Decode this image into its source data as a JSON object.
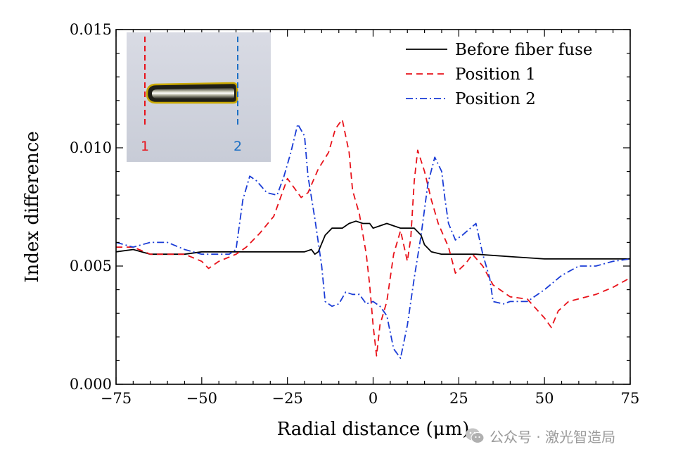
{
  "chart_data": {
    "type": "line",
    "xlabel": "Radial distance (μm)",
    "ylabel": "Index difference",
    "xlim": [
      -75,
      75
    ],
    "ylim": [
      0.0,
      0.015
    ],
    "xticks": [
      -75,
      -50,
      -25,
      0,
      25,
      50,
      75
    ],
    "xtick_labels": [
      "−75",
      "−50",
      "−25",
      "0",
      "25",
      "50",
      "75"
    ],
    "yticks": [
      0.0,
      0.005,
      0.01,
      0.015
    ],
    "ytick_labels": [
      "0.000",
      "0.005",
      "0.010",
      "0.015"
    ],
    "grid": false,
    "legend_position": "top-right",
    "series": [
      {
        "name": "Before fiber fuse",
        "color": "#000000",
        "style": "solid",
        "points": [
          [
            -75,
            0.0056
          ],
          [
            -70,
            0.0057
          ],
          [
            -65,
            0.0055
          ],
          [
            -55,
            0.0055
          ],
          [
            -50,
            0.0056
          ],
          [
            -40,
            0.0056
          ],
          [
            -30,
            0.0056
          ],
          [
            -20,
            0.0056
          ],
          [
            -18,
            0.0057
          ],
          [
            -17,
            0.0055
          ],
          [
            -16,
            0.0056
          ],
          [
            -14,
            0.0063
          ],
          [
            -12,
            0.0066
          ],
          [
            -9,
            0.0066
          ],
          [
            -7,
            0.0068
          ],
          [
            -5,
            0.0069
          ],
          [
            -3,
            0.0068
          ],
          [
            -1,
            0.0068
          ],
          [
            0,
            0.0066
          ],
          [
            2,
            0.0067
          ],
          [
            4,
            0.0068
          ],
          [
            6,
            0.0067
          ],
          [
            8,
            0.0066
          ],
          [
            10,
            0.0066
          ],
          [
            12,
            0.0066
          ],
          [
            14,
            0.0063
          ],
          [
            15,
            0.0059
          ],
          [
            17,
            0.0056
          ],
          [
            20,
            0.0055
          ],
          [
            30,
            0.0055
          ],
          [
            40,
            0.0054
          ],
          [
            50,
            0.0053
          ],
          [
            60,
            0.0053
          ],
          [
            70,
            0.0053
          ],
          [
            75,
            0.0053
          ]
        ]
      },
      {
        "name": "Position 1",
        "color": "#e8121a",
        "style": "dashed",
        "points": [
          [
            -75,
            0.0058
          ],
          [
            -70,
            0.0058
          ],
          [
            -65,
            0.0055
          ],
          [
            -55,
            0.0055
          ],
          [
            -50,
            0.0052
          ],
          [
            -48,
            0.0049
          ],
          [
            -45,
            0.0052
          ],
          [
            -40,
            0.0055
          ],
          [
            -37,
            0.0058
          ],
          [
            -33,
            0.0064
          ],
          [
            -29,
            0.0071
          ],
          [
            -25,
            0.0087
          ],
          [
            -21,
            0.0079
          ],
          [
            -19,
            0.0081
          ],
          [
            -16,
            0.0091
          ],
          [
            -13,
            0.0098
          ],
          [
            -11,
            0.0108
          ],
          [
            -9,
            0.0112
          ],
          [
            -7,
            0.0098
          ],
          [
            -6,
            0.0082
          ],
          [
            -4,
            0.0072
          ],
          [
            -2,
            0.0055
          ],
          [
            -1,
            0.0042
          ],
          [
            0,
            0.0025
          ],
          [
            1,
            0.0012
          ],
          [
            2,
            0.0025
          ],
          [
            4,
            0.0035
          ],
          [
            6,
            0.0055
          ],
          [
            8,
            0.0065
          ],
          [
            10,
            0.0052
          ],
          [
            11,
            0.0062
          ],
          [
            12,
            0.0086
          ],
          [
            13,
            0.0099
          ],
          [
            15,
            0.009
          ],
          [
            17,
            0.0078
          ],
          [
            19,
            0.0068
          ],
          [
            22,
            0.0058
          ],
          [
            24,
            0.0047
          ],
          [
            27,
            0.0051
          ],
          [
            29,
            0.0055
          ],
          [
            32,
            0.005
          ],
          [
            35,
            0.0042
          ],
          [
            40,
            0.0037
          ],
          [
            45,
            0.0036
          ],
          [
            50,
            0.0028
          ],
          [
            52,
            0.0024
          ],
          [
            54,
            0.0031
          ],
          [
            57,
            0.0035
          ],
          [
            65,
            0.0038
          ],
          [
            70,
            0.0041
          ],
          [
            75,
            0.0045
          ]
        ]
      },
      {
        "name": "Position 2",
        "color": "#1a3cd6",
        "style": "dashdot",
        "points": [
          [
            -75,
            0.006
          ],
          [
            -70,
            0.0058
          ],
          [
            -65,
            0.006
          ],
          [
            -60,
            0.006
          ],
          [
            -55,
            0.0057
          ],
          [
            -50,
            0.0055
          ],
          [
            -42,
            0.0055
          ],
          [
            -40,
            0.0057
          ],
          [
            -38,
            0.0078
          ],
          [
            -36,
            0.0088
          ],
          [
            -34,
            0.0086
          ],
          [
            -31,
            0.0081
          ],
          [
            -28,
            0.008
          ],
          [
            -26,
            0.0088
          ],
          [
            -24,
            0.0098
          ],
          [
            -22,
            0.011
          ],
          [
            -20,
            0.0105
          ],
          [
            -19,
            0.0088
          ],
          [
            -17,
            0.007
          ],
          [
            -15,
            0.005
          ],
          [
            -14,
            0.0035
          ],
          [
            -12,
            0.0033
          ],
          [
            -10,
            0.0034
          ],
          [
            -8,
            0.0039
          ],
          [
            -6,
            0.0038
          ],
          [
            -4,
            0.0038
          ],
          [
            -2,
            0.0034
          ],
          [
            0,
            0.0035
          ],
          [
            2,
            0.0033
          ],
          [
            4,
            0.0029
          ],
          [
            6,
            0.0015
          ],
          [
            8,
            0.0011
          ],
          [
            10,
            0.0025
          ],
          [
            12,
            0.0045
          ],
          [
            14,
            0.0063
          ],
          [
            16,
            0.0085
          ],
          [
            18,
            0.0096
          ],
          [
            20,
            0.009
          ],
          [
            21,
            0.0078
          ],
          [
            22,
            0.0068
          ],
          [
            24,
            0.0061
          ],
          [
            26,
            0.0063
          ],
          [
            30,
            0.0068
          ],
          [
            32,
            0.0055
          ],
          [
            34,
            0.0045
          ],
          [
            35,
            0.0035
          ],
          [
            38,
            0.0034
          ],
          [
            40,
            0.0035
          ],
          [
            45,
            0.0035
          ],
          [
            50,
            0.004
          ],
          [
            55,
            0.0046
          ],
          [
            60,
            0.005
          ],
          [
            65,
            0.005
          ],
          [
            70,
            0.0052
          ],
          [
            75,
            0.0053
          ]
        ]
      }
    ],
    "inset": {
      "labels": [
        {
          "text": "1",
          "color": "#e8121a"
        },
        {
          "text": "2",
          "color": "#1c6fc4"
        }
      ]
    }
  },
  "watermark": {
    "text": "公众号 · 激光智造局"
  }
}
